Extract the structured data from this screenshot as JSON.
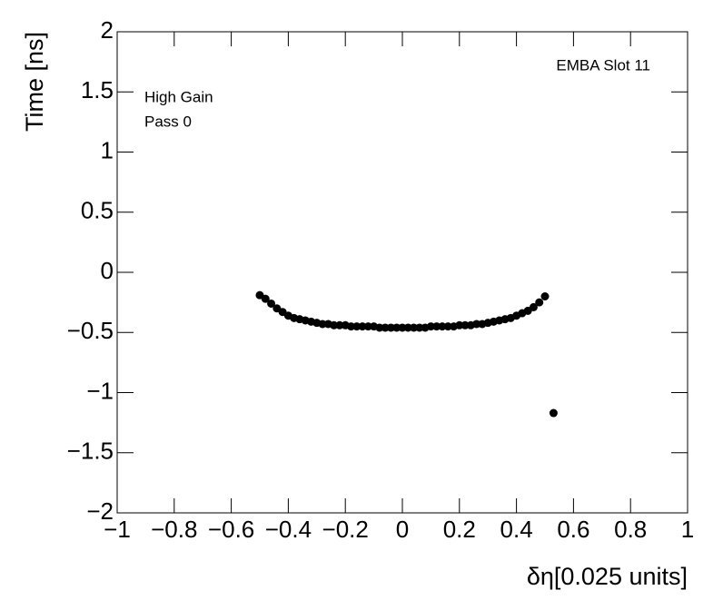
{
  "chart_data": {
    "type": "scatter",
    "x_label": "δη[0.025 units]",
    "y_label": "Time [ns]",
    "annotations": [
      "EMBA Slot 11",
      "High Gain",
      "Pass 0"
    ],
    "color": "#000000",
    "xlim": [
      -1,
      1
    ],
    "ylim": [
      -2,
      2
    ],
    "xticks": [
      {
        "value": -1,
        "label": "−1"
      },
      {
        "value": -0.8,
        "label": "−0.8"
      },
      {
        "value": -0.6,
        "label": "−0.6"
      },
      {
        "value": -0.4,
        "label": "−0.4"
      },
      {
        "value": -0.2,
        "label": "−0.2"
      },
      0,
      0.2,
      0.4,
      0.6,
      0.8,
      1
    ],
    "yticks": [
      {
        "value": -2,
        "label": "−2"
      },
      {
        "value": -1.5,
        "label": "−1.5"
      },
      {
        "value": -1,
        "label": "−1"
      },
      {
        "value": -0.5,
        "label": "−0.5"
      },
      0,
      0.5,
      1,
      1.5,
      2
    ],
    "x": [
      -0.5,
      -0.48,
      -0.46,
      -0.44,
      -0.42,
      -0.4,
      -0.38,
      -0.36,
      -0.34,
      -0.32,
      -0.3,
      -0.28,
      -0.26,
      -0.24,
      -0.22,
      -0.2,
      -0.18,
      -0.16,
      -0.14,
      -0.12,
      -0.1,
      -0.08,
      -0.06,
      -0.04,
      -0.02,
      0,
      0.02,
      0.04,
      0.06,
      0.08,
      0.1,
      0.12,
      0.14,
      0.16,
      0.18,
      0.2,
      0.22,
      0.24,
      0.26,
      0.28,
      0.3,
      0.32,
      0.34,
      0.36,
      0.38,
      0.4,
      0.42,
      0.44,
      0.46,
      0.48,
      0.5,
      0.53
    ],
    "values": [
      -0.19,
      -0.22,
      -0.26,
      -0.3,
      -0.33,
      -0.36,
      -0.38,
      -0.39,
      -0.4,
      -0.41,
      -0.42,
      -0.43,
      -0.43,
      -0.44,
      -0.44,
      -0.44,
      -0.45,
      -0.45,
      -0.45,
      -0.45,
      -0.45,
      -0.46,
      -0.46,
      -0.46,
      -0.46,
      -0.46,
      -0.46,
      -0.46,
      -0.46,
      -0.46,
      -0.45,
      -0.45,
      -0.45,
      -0.45,
      -0.45,
      -0.44,
      -0.44,
      -0.44,
      -0.43,
      -0.43,
      -0.42,
      -0.41,
      -0.4,
      -0.39,
      -0.38,
      -0.36,
      -0.34,
      -0.32,
      -0.29,
      -0.25,
      -0.2,
      -1.17
    ]
  }
}
